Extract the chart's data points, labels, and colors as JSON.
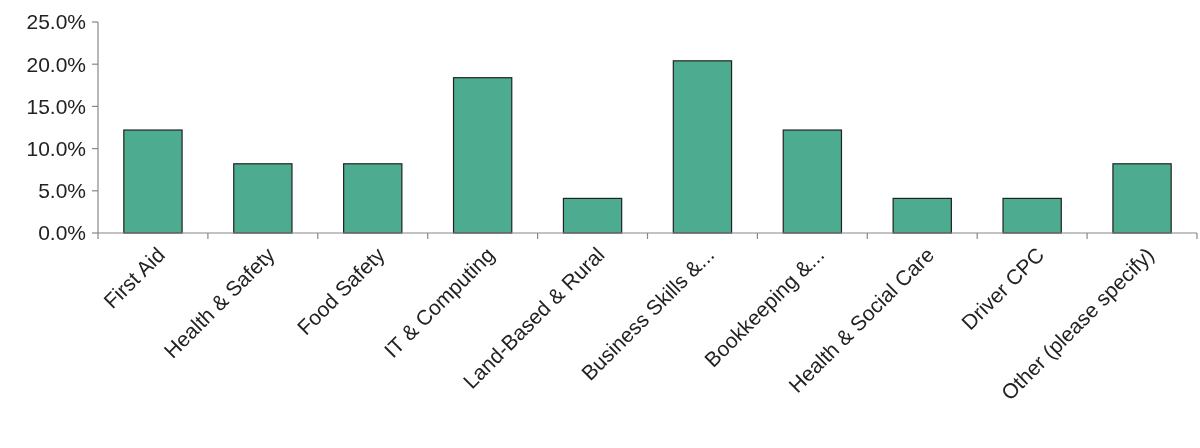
{
  "chart_data": {
    "type": "bar",
    "categories": [
      "First Aid",
      "Health & Safety",
      "Food Safety",
      "IT & Computing",
      "Land-Based & Rural",
      "Business Skills &...",
      "Bookkeeping &...",
      "Health & Social Care",
      "Driver CPC",
      "Other (please specify)"
    ],
    "values": [
      12.2,
      8.2,
      8.2,
      18.4,
      4.1,
      20.4,
      12.2,
      4.1,
      4.1,
      8.2
    ],
    "color": "#4dab8f",
    "ylim": [
      0,
      25
    ],
    "yticks": [
      {
        "value": 0,
        "label": "0.0%"
      },
      {
        "value": 5,
        "label": "5.0%"
      },
      {
        "value": 10,
        "label": "10.0%"
      },
      {
        "value": 15,
        "label": "15.0%"
      },
      {
        "value": 20,
        "label": "20.0%"
      },
      {
        "value": 25,
        "label": "25.0%"
      }
    ],
    "grid": false
  }
}
